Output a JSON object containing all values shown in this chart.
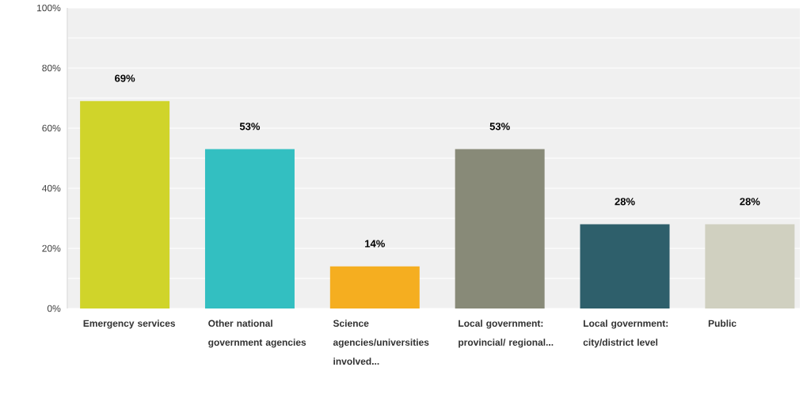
{
  "chart_data": {
    "type": "bar",
    "categories": [
      "Emergency services",
      "Other national government agencies",
      "Science agencies/universities involved...",
      "Local government: provincial/ regional...",
      "Local government: city/district level",
      "Public"
    ],
    "values": [
      69,
      53,
      14,
      53,
      28,
      28
    ],
    "colors": [
      "#d0d42a",
      "#33bfc1",
      "#f5ae20",
      "#888a78",
      "#2e5f6b",
      "#d0d0c0"
    ],
    "value_labels": [
      "69%",
      "53%",
      "14%",
      "53%",
      "28%",
      "28%"
    ],
    "ylim": [
      0,
      100
    ],
    "yticks": [
      {
        "value": 0,
        "label": "0%"
      },
      {
        "value": 10,
        "label": null
      },
      {
        "value": 20,
        "label": "20%"
      },
      {
        "value": 30,
        "label": null
      },
      {
        "value": 40,
        "label": "40%"
      },
      {
        "value": 50,
        "label": null
      },
      {
        "value": 60,
        "label": "60%"
      },
      {
        "value": 70,
        "label": null
      },
      {
        "value": 80,
        "label": "80%"
      },
      {
        "value": 90,
        "label": null
      },
      {
        "value": 100,
        "label": "100%"
      }
    ],
    "grid": "y"
  }
}
